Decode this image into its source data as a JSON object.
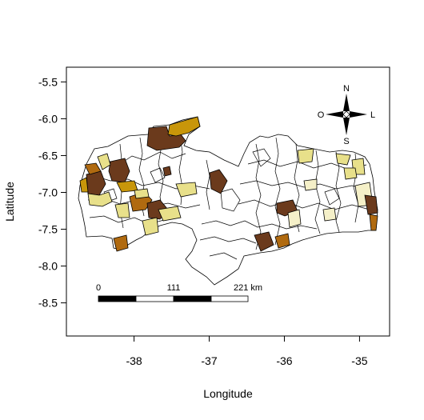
{
  "map": {
    "xlabel": "Longitude",
    "ylabel": "Latitude",
    "x_ticks": [
      "-38",
      "-37",
      "-36",
      "-35"
    ],
    "y_ticks": [
      "-5.5",
      "-6.0",
      "-6.5",
      "-7.0",
      "-7.5",
      "-8.0",
      "-8.5"
    ],
    "x_range": [
      -38.9,
      -34.6
    ],
    "y_range": [
      -8.95,
      -5.3
    ],
    "x_tick_values": [
      -38,
      -37,
      -36,
      -35
    ],
    "y_tick_values": [
      -5.5,
      -6.0,
      -6.5,
      -7.0,
      -7.5,
      -8.0,
      -8.5
    ]
  },
  "compass": {
    "north": "N",
    "south": "S",
    "west": "O",
    "east": "L"
  },
  "scale_bar": {
    "labels": [
      "0",
      "111",
      "221 km"
    ]
  },
  "colors": {
    "background_fill": "#ffffff",
    "light_yellow": "#f5f0c8",
    "yellow": "#e8e08a",
    "gold": "#c8960a",
    "orange_brown": "#b06a10",
    "dark_brown": "#6b3a1c",
    "outline": "#000000"
  }
}
